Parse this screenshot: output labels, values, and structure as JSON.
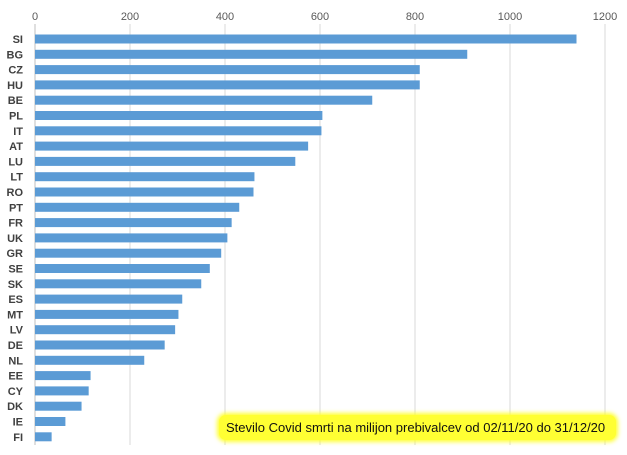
{
  "chart_data": {
    "type": "bar",
    "orientation": "horizontal",
    "categories": [
      "SI",
      "BG",
      "CZ",
      "HU",
      "BE",
      "PL",
      "IT",
      "AT",
      "LU",
      "LT",
      "RO",
      "PT",
      "FR",
      "UK",
      "GR",
      "SE",
      "SK",
      "ES",
      "MT",
      "LV",
      "DE",
      "NL",
      "EE",
      "CY",
      "DK",
      "IE",
      "FI"
    ],
    "values": [
      1140,
      910,
      810,
      810,
      710,
      605,
      603,
      575,
      548,
      462,
      460,
      430,
      414,
      405,
      392,
      368,
      350,
      310,
      302,
      295,
      273,
      230,
      117,
      113,
      98,
      64,
      35
    ],
    "xlim": [
      0,
      1200
    ],
    "xticks": [
      "0",
      "200",
      "400",
      "600",
      "800",
      "1000",
      "1200"
    ],
    "grid": "vertical",
    "bar_color": "#5b9bd5",
    "annotation": "Stevilo Covid smrti na milijon prebivalcev od 02/11/20 do 31/12/20",
    "annotation_highlight": "#ffff33"
  }
}
